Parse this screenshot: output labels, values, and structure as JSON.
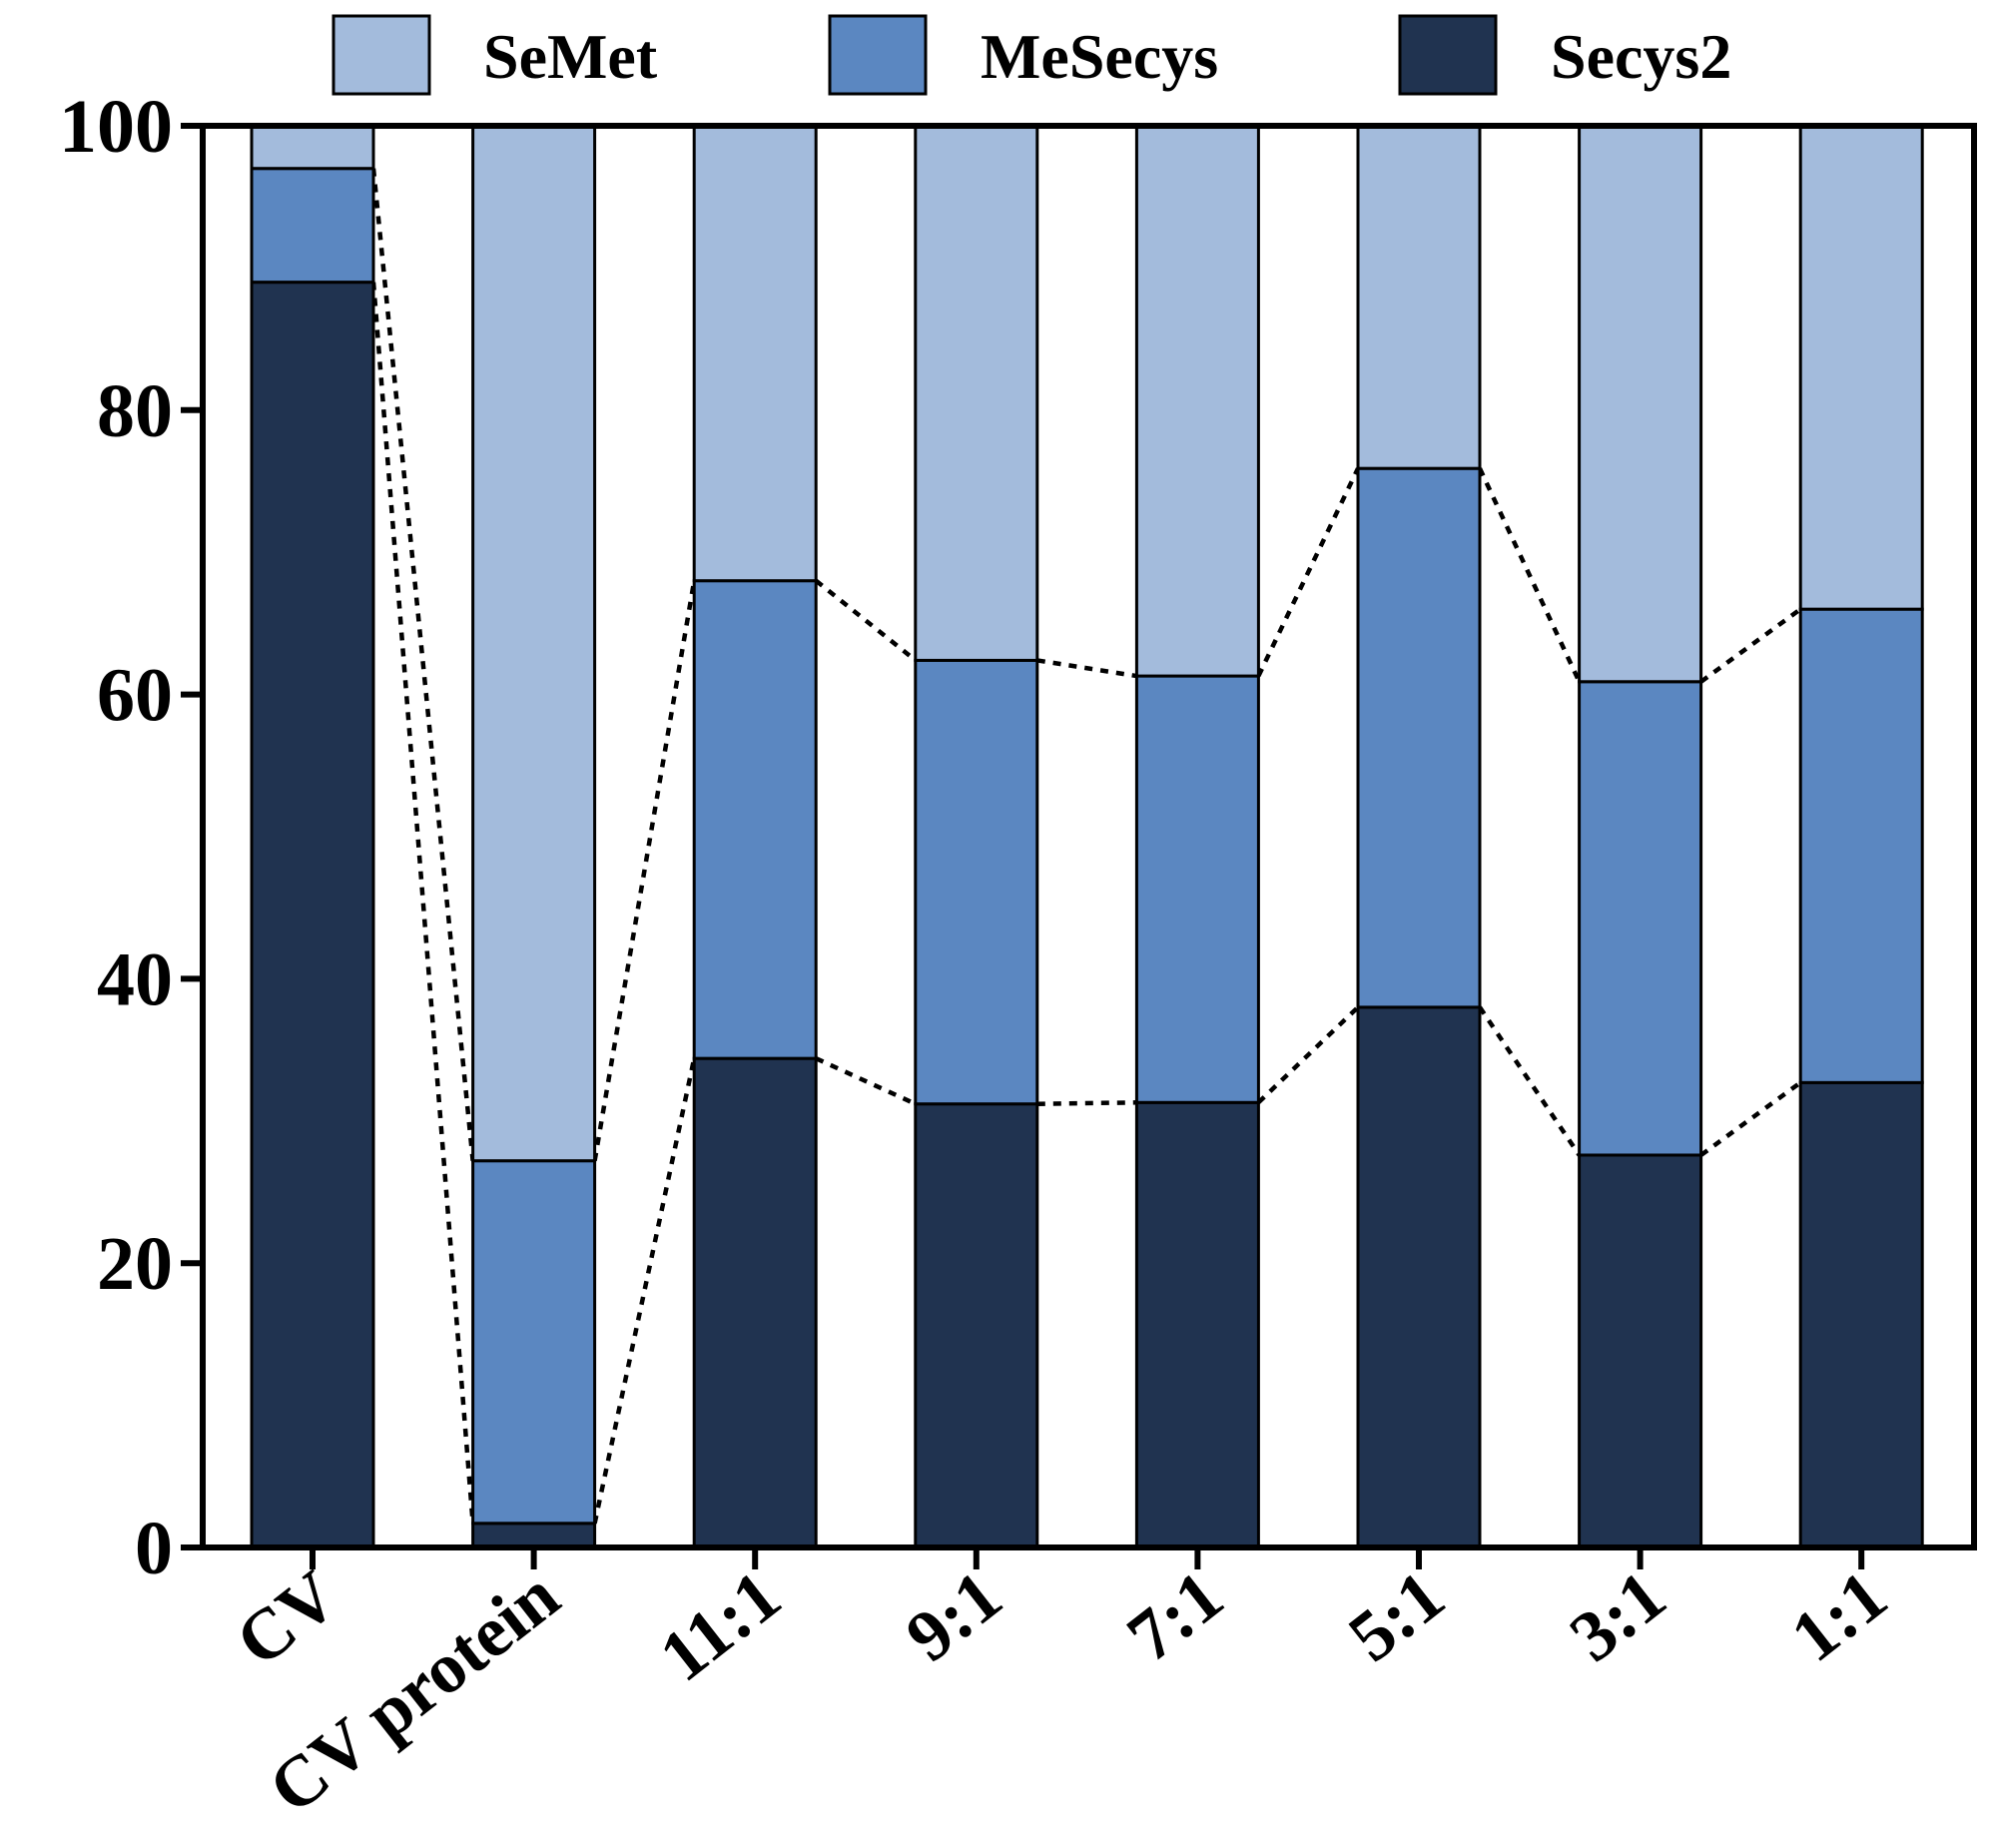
{
  "chart_data": {
    "type": "bar",
    "stacked": true,
    "title": "",
    "xlabel": "",
    "ylabel": "",
    "ylim": [
      0,
      100
    ],
    "yticks": [
      0,
      20,
      40,
      60,
      80,
      100
    ],
    "grid": false,
    "legend_position": "top",
    "categories": [
      "CV",
      "CV protein",
      "11:1",
      "9:1",
      "7:1",
      "5:1",
      "3:1",
      "1:1"
    ],
    "series": [
      {
        "name": "Secys2",
        "color": "#203350",
        "values": [
          89.0,
          1.7,
          34.4,
          31.2,
          31.3,
          38.0,
          27.6,
          32.7
        ]
      },
      {
        "name": "MeSecys",
        "color": "#5b87c1",
        "values": [
          8.0,
          25.5,
          33.6,
          31.2,
          30.0,
          37.9,
          33.3,
          33.3
        ]
      },
      {
        "name": "SeMet",
        "color": "#a3bbdc",
        "values": [
          3.0,
          72.8,
          32.0,
          37.6,
          38.7,
          24.1,
          39.1,
          34.0
        ]
      }
    ],
    "annotations": "dotted connector lines join the top of each Secys2 segment and the top of each MeSecys segment between adjacent bars"
  }
}
